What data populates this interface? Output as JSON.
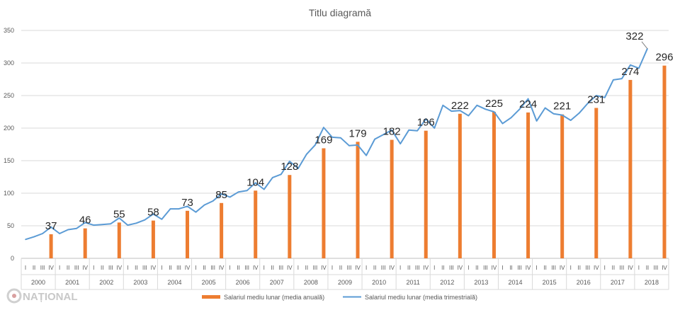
{
  "chart_data": {
    "type": "bar+line",
    "title": "Titlu diagramă",
    "xlabel": "",
    "ylabel": "",
    "ylim": [
      0,
      350
    ],
    "yticks": [
      0,
      50,
      100,
      150,
      200,
      250,
      300,
      350
    ],
    "grid": true,
    "legend_position": "bottom",
    "years": [
      "2000",
      "2001",
      "2002",
      "2003",
      "2004",
      "2005",
      "2006",
      "2007",
      "2008",
      "2009",
      "2010",
      "2011",
      "2012",
      "2013",
      "2014",
      "2015",
      "2016",
      "2017",
      "2018"
    ],
    "quarter_labels": [
      "I",
      "II",
      "III",
      "IV"
    ],
    "series": [
      {
        "name": "Salariul mediu lunar (media anuală)",
        "type": "bar",
        "color": "#ed7d31",
        "values": [
          37,
          46,
          55,
          58,
          73,
          85,
          104,
          128,
          169,
          179,
          182,
          196,
          222,
          225,
          224,
          221,
          231,
          274,
          296
        ]
      },
      {
        "name": "Salariul mediu lunar (media trimestrială)",
        "type": "line",
        "color": "#5b9bd5",
        "values": [
          29,
          33,
          38,
          48,
          38,
          44,
          46,
          55,
          51,
          52,
          53,
          62,
          51,
          54,
          59,
          68,
          60,
          76,
          76,
          80,
          71,
          82,
          88,
          99,
          94,
          102,
          104,
          116,
          106,
          124,
          129,
          149,
          138,
          160,
          174,
          201,
          186,
          185,
          173,
          174,
          158,
          183,
          190,
          197,
          176,
          197,
          196,
          214,
          200,
          235,
          226,
          227,
          219,
          235,
          229,
          225,
          207,
          216,
          229,
          245,
          211,
          231,
          222,
          220,
          212,
          223,
          238,
          250,
          247,
          274,
          276,
          297,
          292,
          322
        ]
      }
    ]
  },
  "logo": {
    "text": "NAȚIONAL"
  }
}
